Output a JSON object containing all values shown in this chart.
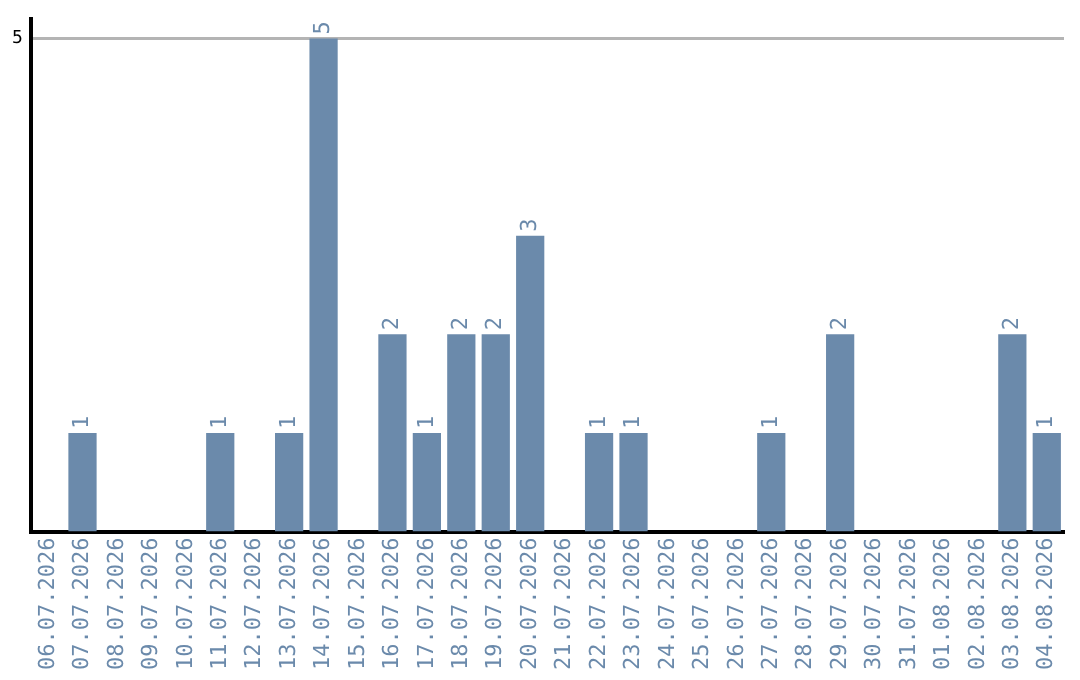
{
  "chart_data": {
    "type": "bar",
    "categories": [
      "06.07.2026",
      "07.07.2026",
      "08.07.2026",
      "09.07.2026",
      "10.07.2026",
      "11.07.2026",
      "12.07.2026",
      "13.07.2026",
      "14.07.2026",
      "15.07.2026",
      "16.07.2026",
      "17.07.2026",
      "18.07.2026",
      "19.07.2026",
      "20.07.2026",
      "21.07.2026",
      "22.07.2026",
      "23.07.2026",
      "24.07.2026",
      "25.07.2026",
      "26.07.2026",
      "27.07.2026",
      "28.07.2026",
      "29.07.2026",
      "30.07.2026",
      "31.07.2026",
      "01.08.2026",
      "02.08.2026",
      "03.08.2026",
      "04.08.2026"
    ],
    "values": [
      0,
      1,
      0,
      0,
      0,
      1,
      0,
      1,
      5,
      0,
      2,
      1,
      2,
      2,
      3,
      0,
      1,
      1,
      0,
      0,
      0,
      1,
      0,
      2,
      0,
      0,
      0,
      0,
      2,
      1
    ],
    "value_labels": [
      null,
      "1",
      null,
      null,
      null,
      "1",
      null,
      "1",
      "5",
      null,
      "2",
      "1",
      "2",
      "2",
      "3",
      null,
      "1",
      "1",
      null,
      null,
      null,
      "1",
      null,
      "2",
      null,
      null,
      null,
      null,
      "2",
      "1"
    ],
    "color": "#6b8aab",
    "ylim": [
      0,
      5.2
    ],
    "yticks": [
      5
    ],
    "grid": "y",
    "legend": false
  }
}
